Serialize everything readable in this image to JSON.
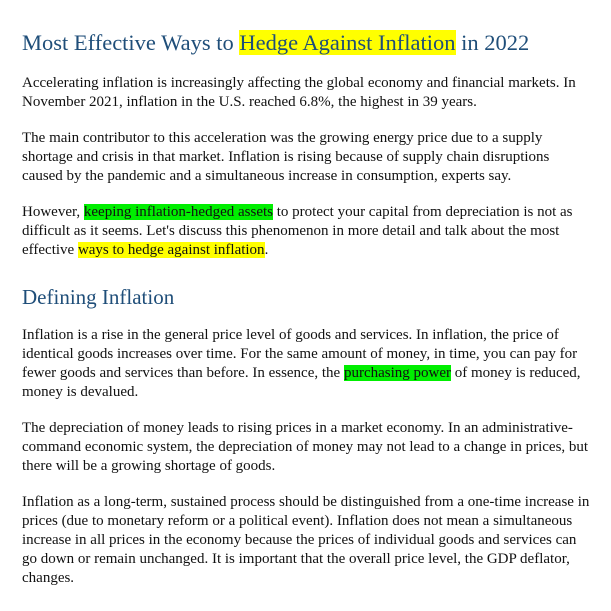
{
  "colors": {
    "heading": "#1f4e79",
    "text": "#111111",
    "highlight_yellow": "#ffff00",
    "highlight_green": "#00ee00"
  },
  "title": {
    "before": "Most Effective Ways to ",
    "highlight": "Hedge Against Inflation",
    "after": " in 2022"
  },
  "intro": {
    "p1": "Accelerating inflation is increasingly affecting the global economy and financial markets. In November 2021, inflation in the U.S. reached 6.8%, the highest in 39 years.",
    "p2": "The main contributor to this acceleration was the growing energy price due to a supply shortage and crisis in that market. Inflation is rising because of supply chain disruptions caused by the pandemic and a simultaneous increase in consumption, experts say.",
    "p3": {
      "before": "However, ",
      "highlight1": "keeping inflation-hedged assets",
      "middle": " to protect your capital from depreciation is not as difficult as it seems. Let's discuss this phenomenon in more detail and talk about the most effective ",
      "highlight2": "ways to hedge against inflation",
      "after": "."
    }
  },
  "section": {
    "heading": "Defining Inflation",
    "p1": {
      "before": "Inflation is a rise in the general price level of goods and services. In inflation, the price of identical goods increases over time. For the same amount of money, in time, you can pay for fewer goods and services than before. In essence, the ",
      "highlight": "purchasing power",
      "after": " of money is reduced, money is devalued."
    },
    "p2": "The depreciation of money leads to rising prices in a market economy. In an administrative-command economic system, the depreciation of money may not lead to a change in prices, but there will be a growing shortage of goods.",
    "p3": "Inflation as a long-term, sustained process should be distinguished from a one-time increase in prices (due to monetary reform or a political event). Inflation does not mean a simultaneous increase in all prices in the economy because the prices of individual goods and services can go down or remain unchanged. It is important that the overall price level, the GDP deflator, changes."
  }
}
